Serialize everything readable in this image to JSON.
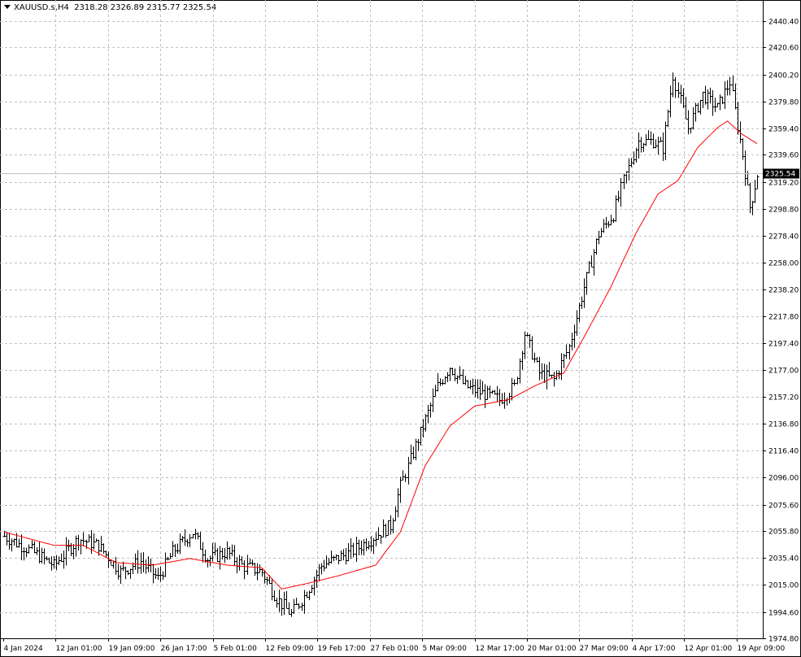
{
  "header": {
    "symbol": "XAUUSD.s,H4",
    "open": "2318.28",
    "high": "2326.89",
    "low": "2315.77",
    "close": "2325.54"
  },
  "current_price_label": "2325.54",
  "chart_data": {
    "type": "candlestick",
    "symbol": "XAUUSD.s",
    "timeframe": "H4",
    "y_ticks": [
      "2440.40",
      "2420.60",
      "2400.20",
      "2379.80",
      "2359.40",
      "2339.60",
      "2319.20",
      "2298.80",
      "2278.40",
      "2258.00",
      "2238.20",
      "2217.80",
      "2197.40",
      "2177.00",
      "2157.20",
      "2136.80",
      "2116.40",
      "2096.00",
      "2075.60",
      "2055.80",
      "2035.40",
      "2015.00",
      "1994.60",
      "1974.80"
    ],
    "x_ticks": [
      "4 Jan 2024",
      "12 Jan 01:00",
      "19 Jan 09:00",
      "26 Jan 17:00",
      "5 Feb 01:00",
      "12 Feb 09:00",
      "19 Feb 17:00",
      "27 Feb 01:00",
      "5 Mar 09:00",
      "12 Mar 17:00",
      "20 Mar 01:00",
      "27 Mar 09:00",
      "4 Apr 17:00",
      "12 Apr 01:00",
      "19 Apr 09:00"
    ],
    "ylim": [
      1974.8,
      2450.0
    ],
    "close_anchors": [
      [
        0,
        2052
      ],
      [
        10,
        2042
      ],
      [
        20,
        2030
      ],
      [
        30,
        2050
      ],
      [
        38,
        2045
      ],
      [
        47,
        2025
      ],
      [
        55,
        2033
      ],
      [
        62,
        2020
      ],
      [
        68,
        2040
      ],
      [
        76,
        2055
      ],
      [
        82,
        2035
      ],
      [
        90,
        2040
      ],
      [
        96,
        2030
      ],
      [
        104,
        2025
      ],
      [
        110,
        2005
      ],
      [
        116,
        1993
      ],
      [
        122,
        2010
      ],
      [
        128,
        2030
      ],
      [
        134,
        2035
      ],
      [
        140,
        2040
      ],
      [
        148,
        2050
      ],
      [
        156,
        2060
      ],
      [
        160,
        2090
      ],
      [
        168,
        2130
      ],
      [
        175,
        2165
      ],
      [
        180,
        2180
      ],
      [
        186,
        2165
      ],
      [
        193,
        2160
      ],
      [
        200,
        2155
      ],
      [
        206,
        2165
      ],
      [
        210,
        2205
      ],
      [
        216,
        2175
      ],
      [
        222,
        2170
      ],
      [
        228,
        2195
      ],
      [
        234,
        2240
      ],
      [
        240,
        2280
      ],
      [
        246,
        2295
      ],
      [
        250,
        2320
      ],
      [
        256,
        2350
      ],
      [
        262,
        2350
      ],
      [
        266,
        2345
      ],
      [
        270,
        2400
      ],
      [
        276,
        2360
      ],
      [
        282,
        2385
      ],
      [
        288,
        2375
      ],
      [
        293,
        2395
      ],
      [
        298,
        2340
      ],
      [
        301,
        2300
      ],
      [
        304,
        2325
      ]
    ],
    "ma_anchors": [
      [
        0,
        2055
      ],
      [
        20,
        2045
      ],
      [
        32,
        2045
      ],
      [
        45,
        2032
      ],
      [
        60,
        2030
      ],
      [
        75,
        2035
      ],
      [
        90,
        2030
      ],
      [
        104,
        2028
      ],
      [
        112,
        2012
      ],
      [
        122,
        2016
      ],
      [
        135,
        2022
      ],
      [
        150,
        2030
      ],
      [
        160,
        2055
      ],
      [
        170,
        2105
      ],
      [
        180,
        2135
      ],
      [
        190,
        2150
      ],
      [
        204,
        2155
      ],
      [
        214,
        2165
      ],
      [
        226,
        2175
      ],
      [
        235,
        2205
      ],
      [
        245,
        2240
      ],
      [
        255,
        2280
      ],
      [
        264,
        2310
      ],
      [
        272,
        2320
      ],
      [
        280,
        2345
      ],
      [
        288,
        2360
      ],
      [
        292,
        2365
      ],
      [
        298,
        2355
      ],
      [
        304,
        2348
      ]
    ],
    "ma_color": "#ff0000",
    "bar_color": "#000000",
    "grid": true,
    "grid_color": "#c0c0c0",
    "current_price": 2325.54,
    "current_price_line_color": "#c0c0c0"
  }
}
